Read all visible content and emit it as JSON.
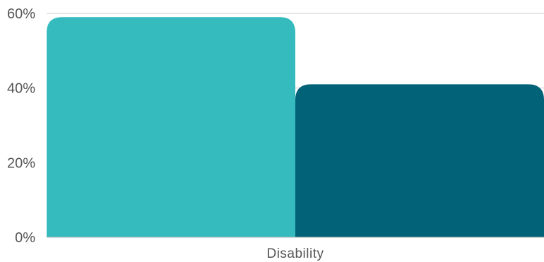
{
  "chart_data": {
    "type": "bar",
    "categories": [
      "Disability"
    ],
    "series": [
      {
        "values": [
          0.59
        ],
        "color": "#35BBBE"
      },
      {
        "values": [
          0.41
        ],
        "color": "#026278"
      }
    ],
    "ylim": [
      0,
      0.6
    ],
    "yticks": [
      0,
      0.2,
      0.4,
      0.6
    ],
    "ytick_labels": [
      "0%",
      "20%",
      "40%",
      "60%"
    ],
    "grid": true,
    "legend": "none"
  }
}
